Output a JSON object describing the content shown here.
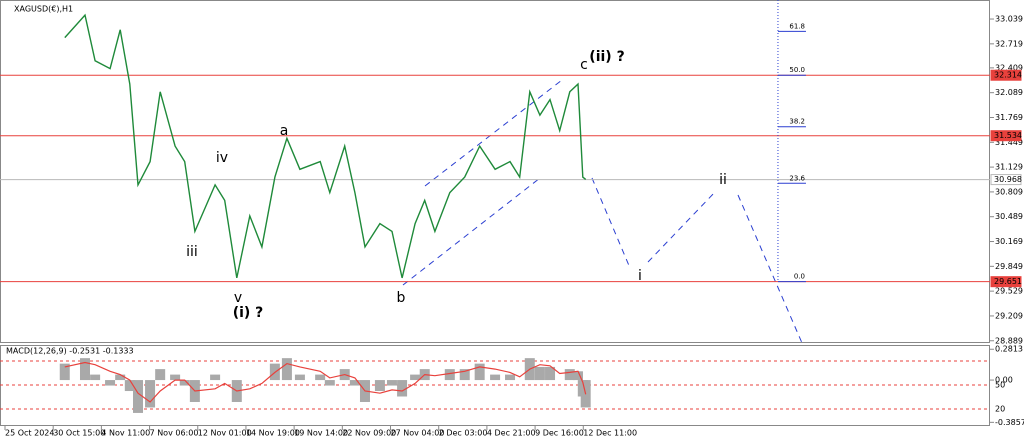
{
  "chart_data": [
    {
      "type": "line",
      "title": "XAGUSD(€),H1",
      "color": "#1f8a3a",
      "x": [
        1.24,
        1.66,
        1.87,
        2.18,
        2.39,
        2.59,
        2.76,
        3.01,
        3.22,
        3.53,
        3.73,
        3.94,
        4.36,
        4.56,
        4.81,
        5.08,
        5.33,
        5.6,
        5.85,
        6.12,
        6.54,
        6.74,
        7.05,
        7.26,
        7.47,
        7.78,
        8.03,
        8.24,
        8.51,
        8.71,
        8.92,
        9.23,
        9.54,
        9.85,
        10.17,
        10.48,
        10.68,
        10.89,
        11.1,
        11.31,
        11.51,
        11.72,
        11.89,
        11.99,
        12.05
      ],
      "values": [
        32.8,
        33.09,
        32.5,
        32.4,
        32.9,
        32.2,
        30.9,
        31.2,
        32.1,
        31.4,
        31.2,
        30.3,
        30.9,
        30.7,
        29.7,
        30.5,
        30.1,
        31.0,
        31.5,
        31.1,
        31.2,
        30.8,
        31.4,
        30.8,
        30.1,
        30.4,
        30.3,
        29.7,
        30.4,
        30.7,
        30.3,
        30.8,
        31.0,
        31.4,
        31.1,
        31.2,
        31.0,
        32.1,
        31.8,
        32.0,
        31.6,
        32.1,
        32.2,
        31.0,
        30.97
      ],
      "xlim": [
        0,
        20.44
      ],
      "xticks": [
        {
          "value": 0,
          "label": "25 Oct 2024"
        },
        {
          "value": 1,
          "label": "30 Oct 15:00"
        },
        {
          "value": 2,
          "label": "4 Nov 11:00"
        },
        {
          "value": 3,
          "label": "7 Nov 06:00"
        },
        {
          "value": 4,
          "label": "12 Nov 01:00"
        },
        {
          "value": 5,
          "label": "14 Nov 19:00"
        },
        {
          "value": 6,
          "label": "19 Nov 14:00"
        },
        {
          "value": 7,
          "label": "22 Nov 09:00"
        },
        {
          "value": 8,
          "label": "27 Nov 04:00"
        },
        {
          "value": 9,
          "label": "2 Dec 03:00"
        },
        {
          "value": 10,
          "label": "4 Dec 21:00"
        },
        {
          "value": 11,
          "label": "9 Dec 16:00"
        },
        {
          "value": 12,
          "label": "12 Dec 11:00"
        }
      ],
      "ylim": [
        28.86,
        33.22
      ],
      "yticks": [
        33.039,
        32.719,
        32.409,
        32.089,
        31.769,
        31.449,
        31.129,
        30.809,
        30.489,
        30.169,
        29.849,
        29.529,
        29.209,
        28.889
      ],
      "levels": [
        {
          "value": 32.314,
          "color": "#e8413c",
          "box": "#e8413c",
          "text_color": "#ffffff"
        },
        {
          "value": 31.534,
          "color": "#e8413c",
          "box": "#e8413c",
          "text_color": "#ffffff"
        },
        {
          "value": 30.968,
          "color": "#b8b8b8",
          "box": "#ffffff",
          "text_color": "#000000"
        },
        {
          "value": 29.651,
          "color": "#e8413c",
          "box": "#e8413c",
          "text_color": "#ffffff"
        }
      ],
      "fib": {
        "x": 16.04,
        "color": "#2b3fd1",
        "labels": [
          "61.8",
          "50.0",
          "38.2",
          "23.6",
          "0.0"
        ],
        "prices": [
          32.88,
          32.314,
          31.65,
          30.92,
          29.651
        ]
      },
      "annotations": [
        {
          "text": "(ii) ?",
          "color": "#2727c7"
        },
        {
          "text": "c",
          "color": "#e020d0"
        },
        {
          "text": "a",
          "color": "#e020d0"
        },
        {
          "text": "iv",
          "color": "#e020d0"
        },
        {
          "text": "iii",
          "color": "#e020d0"
        },
        {
          "text": "v",
          "color": "#e020d0"
        },
        {
          "text": "(i) ?",
          "color": "#2727c7"
        },
        {
          "text": "b",
          "color": "#e020d0"
        },
        {
          "text": "i",
          "color": "#e020d0"
        },
        {
          "text": "ii",
          "color": "#e020d0"
        }
      ]
    },
    {
      "type": "macd",
      "title": "MACD(12,26,9) -0.2531 -0.1333",
      "x": [
        1.24,
        1.66,
        1.87,
        2.18,
        2.39,
        2.59,
        2.76,
        3.01,
        3.22,
        3.53,
        3.73,
        3.94,
        4.36,
        4.56,
        4.81,
        5.08,
        5.33,
        5.6,
        5.85,
        6.12,
        6.54,
        6.74,
        7.05,
        7.26,
        7.47,
        7.78,
        8.03,
        8.24,
        8.51,
        8.71,
        8.92,
        9.23,
        9.54,
        9.85,
        10.17,
        10.48,
        10.68,
        10.89,
        11.1,
        11.31,
        11.51,
        11.72,
        11.89,
        11.99,
        12.05
      ],
      "series": [
        {
          "name": "MACD",
          "color": "#a9a9a9",
          "values": [
            0.15,
            0.2,
            0.05,
            -0.05,
            0.05,
            -0.1,
            -0.3,
            -0.25,
            0.1,
            0.05,
            -0.05,
            -0.2,
            0.05,
            0.0,
            -0.2,
            0.0,
            0.0,
            0.15,
            0.2,
            0.05,
            0.05,
            -0.05,
            0.1,
            -0.05,
            -0.2,
            -0.1,
            -0.05,
            -0.15,
            0.05,
            0.1,
            0.0,
            0.1,
            0.1,
            0.15,
            0.05,
            0.05,
            0.0,
            0.2,
            0.12,
            0.12,
            0.0,
            0.1,
            0.08,
            -0.15,
            -0.25
          ]
        },
        {
          "name": "Signal",
          "color": "#e8413c",
          "values": [
            0.12,
            0.16,
            0.14,
            0.08,
            0.05,
            0.0,
            -0.12,
            -0.2,
            -0.1,
            0.0,
            0.0,
            -0.1,
            -0.08,
            -0.03,
            -0.1,
            -0.08,
            -0.03,
            0.07,
            0.15,
            0.12,
            0.08,
            0.02,
            0.05,
            0.02,
            -0.1,
            -0.12,
            -0.09,
            -0.1,
            -0.03,
            0.05,
            0.04,
            0.06,
            0.08,
            0.12,
            0.1,
            0.07,
            0.03,
            0.1,
            0.14,
            0.13,
            0.06,
            0.07,
            0.08,
            -0.02,
            -0.13
          ]
        }
      ],
      "ylim": [
        -0.41,
        0.32
      ],
      "yticks": [
        0.2813,
        {
          "value": 0,
          "label": "0.00"
        },
        -0.3857
      ],
      "y2lim": [
        0,
        100
      ],
      "y2ticks": [
        50,
        20
      ],
      "levels": [
        80,
        50,
        20
      ]
    }
  ]
}
